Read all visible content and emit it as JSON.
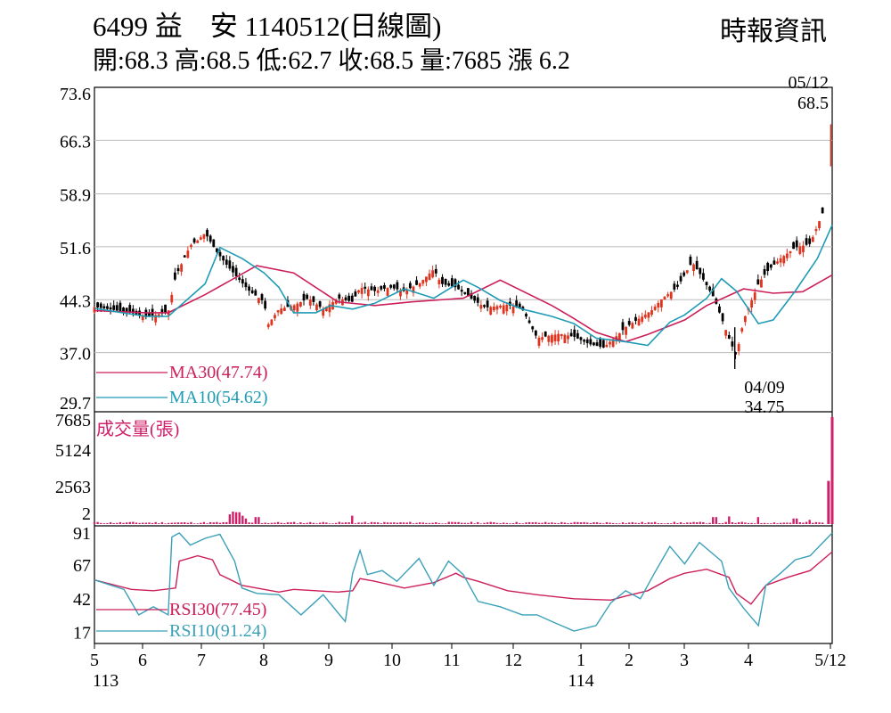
{
  "header": {
    "title": "6499  益　安 1140512(日線圖)",
    "source": "時報資訊",
    "ohlc": "開:68.3 高:68.5 低:62.7 收:68.5 量:7685 漲 6.2"
  },
  "colors": {
    "up": "#e0341e",
    "down": "#000000",
    "ma30": "#cc1f5a",
    "ma10": "#1e9bb5",
    "volume": "#d1206a",
    "rsi30": "#cc1f5a",
    "rsi10": "#3aa0b8",
    "grid": "#bbbbbb"
  },
  "chart_data": [
    {
      "type": "candlestick",
      "panel": "price",
      "yticks": [
        "73.6",
        "66.3",
        "58.9",
        "51.6",
        "44.3",
        "37.0",
        "29.7"
      ],
      "ylim": [
        29.7,
        73.6
      ],
      "legend": [
        "MA30(47.74)",
        "MA10(54.62)"
      ],
      "annotations": [
        {
          "label_date": "05/12",
          "label_value": "68.5",
          "value": 68.5
        },
        {
          "label_date": "04/09",
          "label_value": "34.75",
          "value": 34.75
        }
      ],
      "series": [
        {
          "name": "MA30(47.74)",
          "x": [
            0.0,
            0.07,
            0.1,
            0.15,
            0.22,
            0.27,
            0.33,
            0.38,
            0.43,
            0.5,
            0.55,
            0.62,
            0.65,
            0.68,
            0.72,
            0.75,
            0.8,
            0.83,
            0.88,
            0.92,
            0.96,
            1.0
          ],
          "y": [
            42.8,
            42.5,
            42.5,
            45,
            49,
            48,
            44,
            43.5,
            44,
            44.5,
            47,
            43.5,
            41.7,
            39.8,
            38.5,
            39.5,
            41.5,
            43.5,
            45.8,
            45.2,
            45.4,
            47.7
          ]
        },
        {
          "name": "MA10(54.62)",
          "x": [
            0.0,
            0.07,
            0.1,
            0.15,
            0.17,
            0.2,
            0.23,
            0.25,
            0.27,
            0.3,
            0.32,
            0.35,
            0.38,
            0.42,
            0.46,
            0.5,
            0.52,
            0.55,
            0.58,
            0.62,
            0.65,
            0.68,
            0.72,
            0.75,
            0.78,
            0.8,
            0.83,
            0.85,
            0.87,
            0.9,
            0.92,
            0.95,
            0.98,
            1.0
          ],
          "y": [
            43.1,
            42,
            42,
            46.5,
            51.5,
            50,
            48,
            46,
            42.5,
            42.5,
            43.5,
            43,
            43.8,
            45.8,
            44.5,
            47,
            46,
            44.2,
            43,
            42,
            41,
            39,
            38.5,
            38,
            41.2,
            42.2,
            44.5,
            47.2,
            45.5,
            41,
            41.5,
            45.5,
            50,
            54.6
          ]
        }
      ],
      "candle_path": {
        "x": [
          0.0,
          0.05,
          0.07,
          0.1,
          0.11,
          0.13,
          0.14,
          0.15,
          0.165,
          0.18,
          0.195,
          0.21,
          0.23,
          0.235,
          0.25,
          0.27,
          0.29,
          0.31,
          0.33,
          0.35,
          0.36,
          0.38,
          0.4,
          0.42,
          0.44,
          0.46,
          0.47,
          0.49,
          0.51,
          0.53,
          0.56,
          0.58,
          0.6,
          0.61,
          0.63,
          0.65,
          0.67,
          0.69,
          0.71,
          0.72,
          0.74,
          0.755,
          0.77,
          0.79,
          0.81,
          0.82,
          0.84,
          0.86,
          0.87,
          0.88,
          0.9,
          0.91,
          0.93,
          0.95,
          0.97,
          0.99,
          1.0
        ],
        "y": [
          43.3,
          42.5,
          41.9,
          42.6,
          47.5,
          51.8,
          52.5,
          53.5,
          51,
          49,
          47.2,
          45.5,
          44,
          40.8,
          43,
          43.5,
          44.5,
          43,
          44.5,
          44,
          46,
          45.5,
          46,
          45.5,
          46.5,
          48.5,
          46.5,
          46,
          44.5,
          43.2,
          43.6,
          43,
          39,
          39.2,
          39.6,
          39.2,
          38.2,
          37.7,
          39.5,
          40.5,
          41.8,
          42.8,
          44.5,
          46,
          49.5,
          48,
          44.5,
          39,
          36.5,
          41.5,
          46.5,
          48,
          50,
          51.5,
          52,
          57,
          68.5
        ]
      }
    },
    {
      "type": "bar",
      "panel": "volume",
      "title": "成交量(張)",
      "yticks": [
        "7685",
        "5124",
        "2563",
        "2"
      ],
      "ylim": [
        0,
        7685
      ],
      "spikes": [
        {
          "x": 0.183,
          "value": 700
        },
        {
          "x": 0.188,
          "value": 900
        },
        {
          "x": 0.194,
          "value": 850
        },
        {
          "x": 0.2,
          "value": 600
        },
        {
          "x": 0.206,
          "value": 400
        },
        {
          "x": 0.22,
          "value": 500
        },
        {
          "x": 0.35,
          "value": 600
        },
        {
          "x": 0.84,
          "value": 500
        },
        {
          "x": 0.86,
          "value": 550
        },
        {
          "x": 0.9,
          "value": 500
        },
        {
          "x": 0.95,
          "value": 400
        },
        {
          "x": 0.97,
          "value": 300
        },
        {
          "x": 0.995,
          "value": 3100
        },
        {
          "x": 1.0,
          "value": 7685
        }
      ]
    },
    {
      "type": "line",
      "panel": "rsi",
      "yticks": [
        "91",
        "67",
        "42",
        "17"
      ],
      "ylim": [
        10,
        95
      ],
      "series": [
        {
          "name": "RSI30(77.45)",
          "x": [
            0.0,
            0.05,
            0.08,
            0.11,
            0.115,
            0.14,
            0.16,
            0.17,
            0.2,
            0.23,
            0.25,
            0.27,
            0.3,
            0.33,
            0.35,
            0.36,
            0.38,
            0.42,
            0.46,
            0.49,
            0.5,
            0.52,
            0.56,
            0.6,
            0.65,
            0.7,
            0.72,
            0.75,
            0.78,
            0.8,
            0.83,
            0.86,
            0.87,
            0.89,
            0.91,
            0.94,
            0.97,
            1.0
          ],
          "y": [
            56,
            49,
            48,
            50,
            70,
            74,
            71,
            60,
            52,
            49,
            47,
            49,
            48,
            47,
            48,
            57,
            55,
            50,
            54,
            61,
            58,
            55,
            48,
            45,
            42,
            41,
            44,
            48,
            57,
            61,
            64,
            58,
            46,
            38,
            52,
            58,
            63,
            77
          ]
        },
        {
          "name": "RSI10(91.24)",
          "x": [
            0.0,
            0.04,
            0.06,
            0.08,
            0.1,
            0.105,
            0.115,
            0.13,
            0.15,
            0.17,
            0.19,
            0.2,
            0.22,
            0.25,
            0.28,
            0.31,
            0.34,
            0.35,
            0.36,
            0.37,
            0.39,
            0.41,
            0.44,
            0.46,
            0.48,
            0.5,
            0.52,
            0.55,
            0.58,
            0.6,
            0.62,
            0.65,
            0.68,
            0.7,
            0.72,
            0.74,
            0.76,
            0.78,
            0.8,
            0.82,
            0.85,
            0.86,
            0.88,
            0.9,
            0.91,
            0.93,
            0.95,
            0.97,
            1.0
          ],
          "y": [
            56,
            49,
            30,
            36,
            30,
            88,
            91,
            82,
            87,
            90,
            70,
            50,
            46,
            45,
            30,
            45,
            25,
            61,
            78,
            60,
            63,
            55,
            72,
            52,
            70,
            60,
            40,
            36,
            30,
            30,
            25,
            18,
            22,
            39,
            48,
            42,
            62,
            81,
            68,
            84,
            70,
            50,
            35,
            22,
            52,
            61,
            71,
            74,
            91
          ]
        }
      ]
    },
    {
      "type": "axis",
      "xticks": [
        "5",
        "6",
        "7",
        "8",
        "9",
        "10",
        "11",
        "12",
        "1",
        "2",
        "3",
        "4",
        "5/12"
      ],
      "year_labels": [
        "113",
        "114"
      ]
    }
  ]
}
